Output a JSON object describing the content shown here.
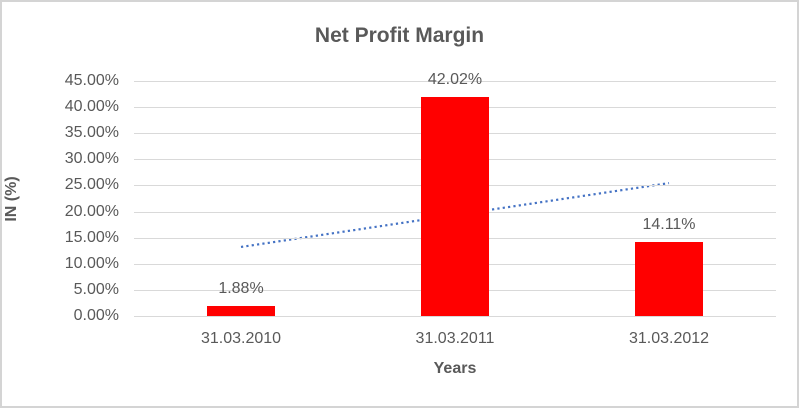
{
  "chart_data": {
    "type": "bar",
    "title": "Net Profit Margin",
    "xlabel": "Years",
    "ylabel": "IN (%)",
    "categories": [
      "31.03.2010",
      "31.03.2011",
      "31.03.2012"
    ],
    "values": [
      1.88,
      42.02,
      14.11
    ],
    "data_labels": [
      "1.88%",
      "42.02%",
      "14.11%"
    ],
    "ylim": [
      0,
      45
    ],
    "ytick_step": 5,
    "ytick_labels": [
      "0.00%",
      "5.00%",
      "10.00%",
      "15.00%",
      "20.00%",
      "25.00%",
      "30.00%",
      "35.00%",
      "40.00%",
      "45.00%"
    ],
    "grid": true,
    "legend": false,
    "bar_color": "#ff0000",
    "gridline_color": "#d9d9d9",
    "text_color": "#595959",
    "trendline": {
      "type": "linear",
      "style": "dotted",
      "color": "#4472c4",
      "start_value": 13.22,
      "end_value": 25.45
    }
  }
}
